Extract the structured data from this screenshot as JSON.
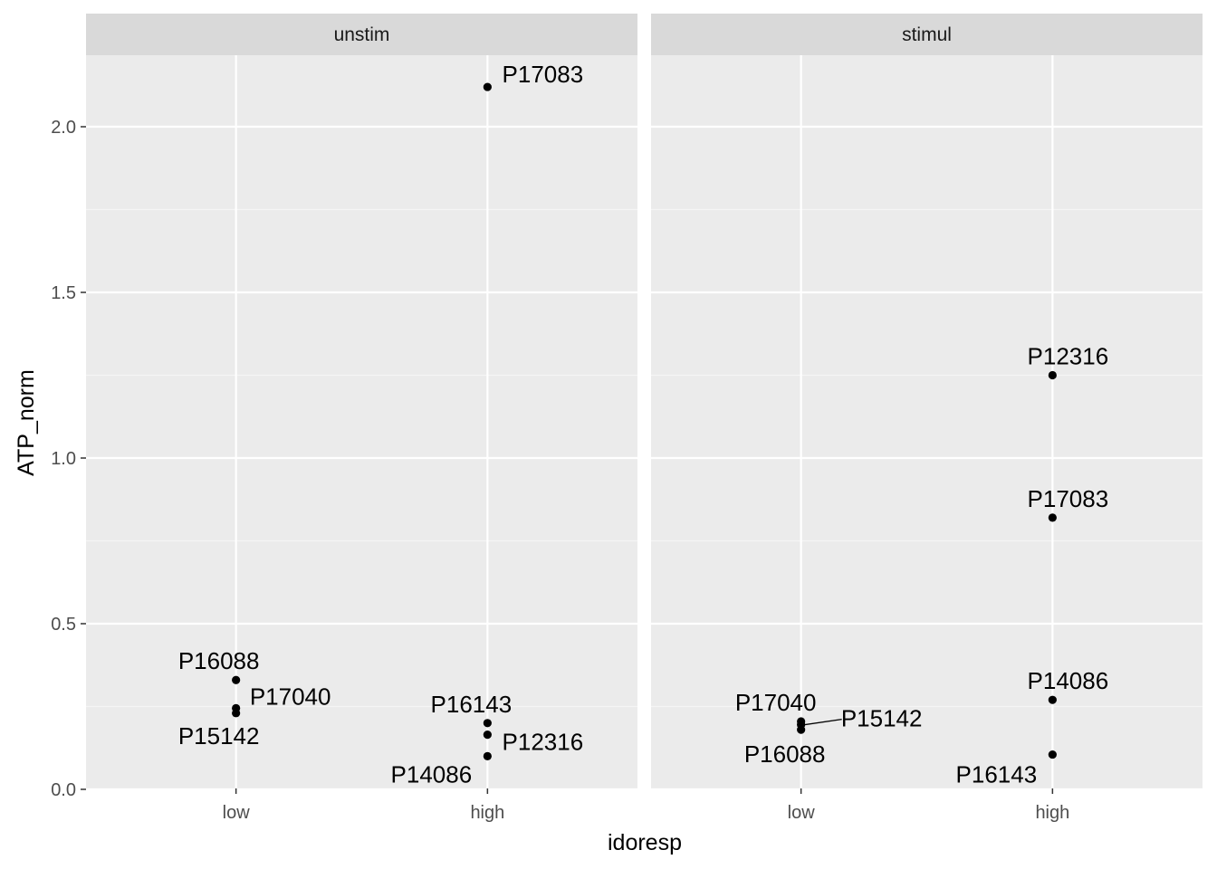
{
  "chart_data": {
    "type": "scatter",
    "xlabel": "idoresp",
    "ylabel": "ATP_norm",
    "categories": [
      "low",
      "high"
    ],
    "ylim": [
      0,
      2.2
    ],
    "yticks": [
      0.0,
      0.5,
      1.0,
      1.5,
      2.0
    ],
    "ytick_labels": [
      "0.0",
      "0.5",
      "1.0",
      "1.5",
      "2.0"
    ],
    "grid": true,
    "facets": [
      {
        "name": "unstim",
        "points": [
          {
            "x": "low",
            "y": 0.33,
            "label": "P16088"
          },
          {
            "x": "low",
            "y": 0.245,
            "label": "P17040"
          },
          {
            "x": "low",
            "y": 0.23,
            "label": "P15142"
          },
          {
            "x": "high",
            "y": 2.12,
            "label": "P17083"
          },
          {
            "x": "high",
            "y": 0.2,
            "label": "P16143"
          },
          {
            "x": "high",
            "y": 0.165,
            "label": "P12316"
          },
          {
            "x": "high",
            "y": 0.1,
            "label": "P14086"
          }
        ]
      },
      {
        "name": "stimul",
        "points": [
          {
            "x": "low",
            "y": 0.205,
            "label": "P17040"
          },
          {
            "x": "low",
            "y": 0.195,
            "label": "P15142"
          },
          {
            "x": "low",
            "y": 0.18,
            "label": "P16088"
          },
          {
            "x": "high",
            "y": 1.25,
            "label": "P12316"
          },
          {
            "x": "high",
            "y": 0.82,
            "label": "P17083"
          },
          {
            "x": "high",
            "y": 0.27,
            "label": "P14086"
          },
          {
            "x": "high",
            "y": 0.105,
            "label": "P16143"
          }
        ]
      }
    ]
  }
}
